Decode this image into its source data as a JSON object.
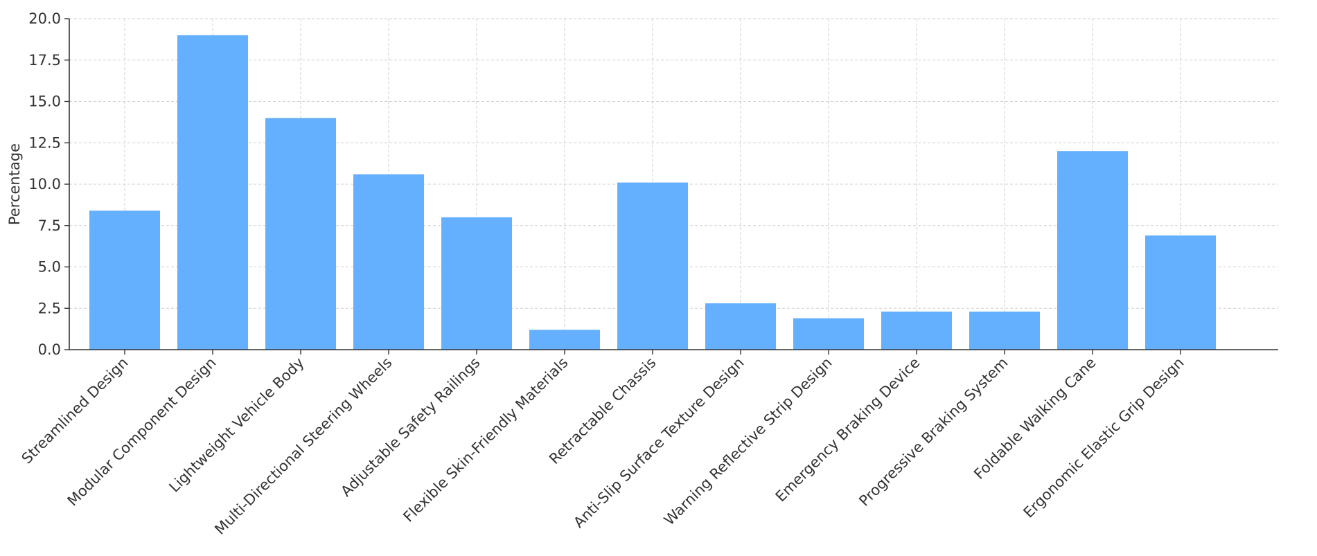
{
  "chart_data": {
    "type": "bar",
    "title": "",
    "xlabel": "",
    "ylabel": "Percentage",
    "ylim": [
      0,
      20
    ],
    "yticks": [
      "0.0",
      "2.5",
      "5.0",
      "7.5",
      "10.0",
      "12.5",
      "15.0",
      "17.5",
      "20.0"
    ],
    "grid": true,
    "bar_color": "#64b0ff",
    "categories": [
      "Streamlined Design",
      "Modular Component Design",
      "Lightweight Vehicle Body",
      "Multi-Directional Steering Wheels",
      "Adjustable Safety Railings",
      "Flexible Skin-Friendly Materials",
      "Retractable Chassis",
      "Anti-Slip Surface Texture Design",
      "Warning Reflective Strip Design",
      "Emergency Braking Device",
      "Progressive Braking System",
      "Foldable Walking Cane",
      "Ergonomic Elastic Grip Design"
    ],
    "values": [
      8.4,
      19.0,
      14.0,
      10.6,
      8.0,
      1.2,
      10.1,
      2.8,
      1.9,
      2.3,
      2.3,
      12.0,
      6.9
    ]
  }
}
